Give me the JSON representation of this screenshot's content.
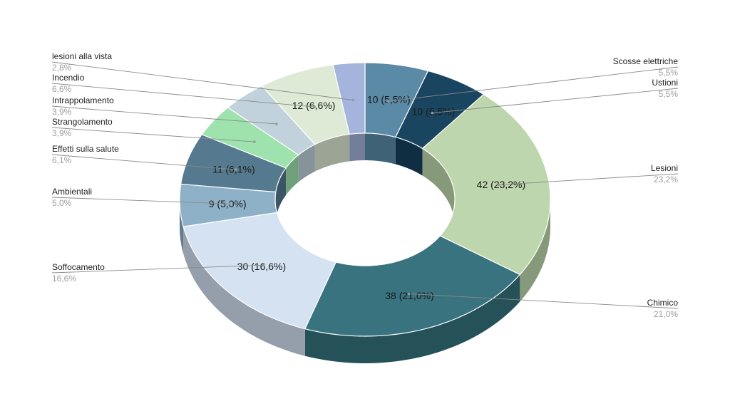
{
  "chart_data": {
    "type": "pie",
    "donut": true,
    "three_d": true,
    "legend": "callouts",
    "slices": [
      {
        "name": "Scosse elettriche",
        "value": 10,
        "label": "10 (5,5%)",
        "pct": "5,5%",
        "color": "#5b8aa6",
        "side_color": "#3f6277"
      },
      {
        "name": "Ustioni",
        "value": 10,
        "label": "10 (5,5%)",
        "pct": "5,5%",
        "color": "#1a4560",
        "side_color": "#0f2e42"
      },
      {
        "name": "Lesioni",
        "value": 42,
        "label": "42 (23,2%)",
        "pct": "23,2%",
        "color": "#bdd6ad",
        "side_color": "#86997a"
      },
      {
        "name": "Chimico",
        "value": 38,
        "label": "38 (21,0%)",
        "pct": "21,0%",
        "color": "#38737f",
        "side_color": "#255159"
      },
      {
        "name": "Soffocamento",
        "value": 30,
        "label": "30 (16,6%)",
        "pct": "16,6%",
        "color": "#d5e2f2",
        "side_color": "#959eab"
      },
      {
        "name": "Ambientali",
        "value": 9,
        "label": "9 (5,0%)",
        "pct": "5,0%",
        "color": "#8eb1c7",
        "side_color": "#637c8c"
      },
      {
        "name": "Effetti sulla salute",
        "value": 11,
        "label": "11 (6,1%)",
        "pct": "6,1%",
        "color": "#557a8f",
        "side_color": "#3b5564"
      },
      {
        "name": "Strangolamento",
        "value": 7,
        "label": "",
        "pct": "3,9%",
        "color": "#9ee3ad",
        "side_color": "#6ea079"
      },
      {
        "name": "Intrappolamento",
        "value": 7,
        "label": "",
        "pct": "3,9%",
        "color": "#c2d2dd",
        "side_color": "#87939b"
      },
      {
        "name": "Incendio",
        "value": 12,
        "label": "12 (6,6%)",
        "pct": "6,6%",
        "color": "#deead5",
        "side_color": "#9ba495"
      },
      {
        "name": "lesioni alla vista",
        "value": 5,
        "label": "",
        "pct": "2,8%",
        "color": "#a5b4dd",
        "side_color": "#737e9b"
      }
    ]
  }
}
